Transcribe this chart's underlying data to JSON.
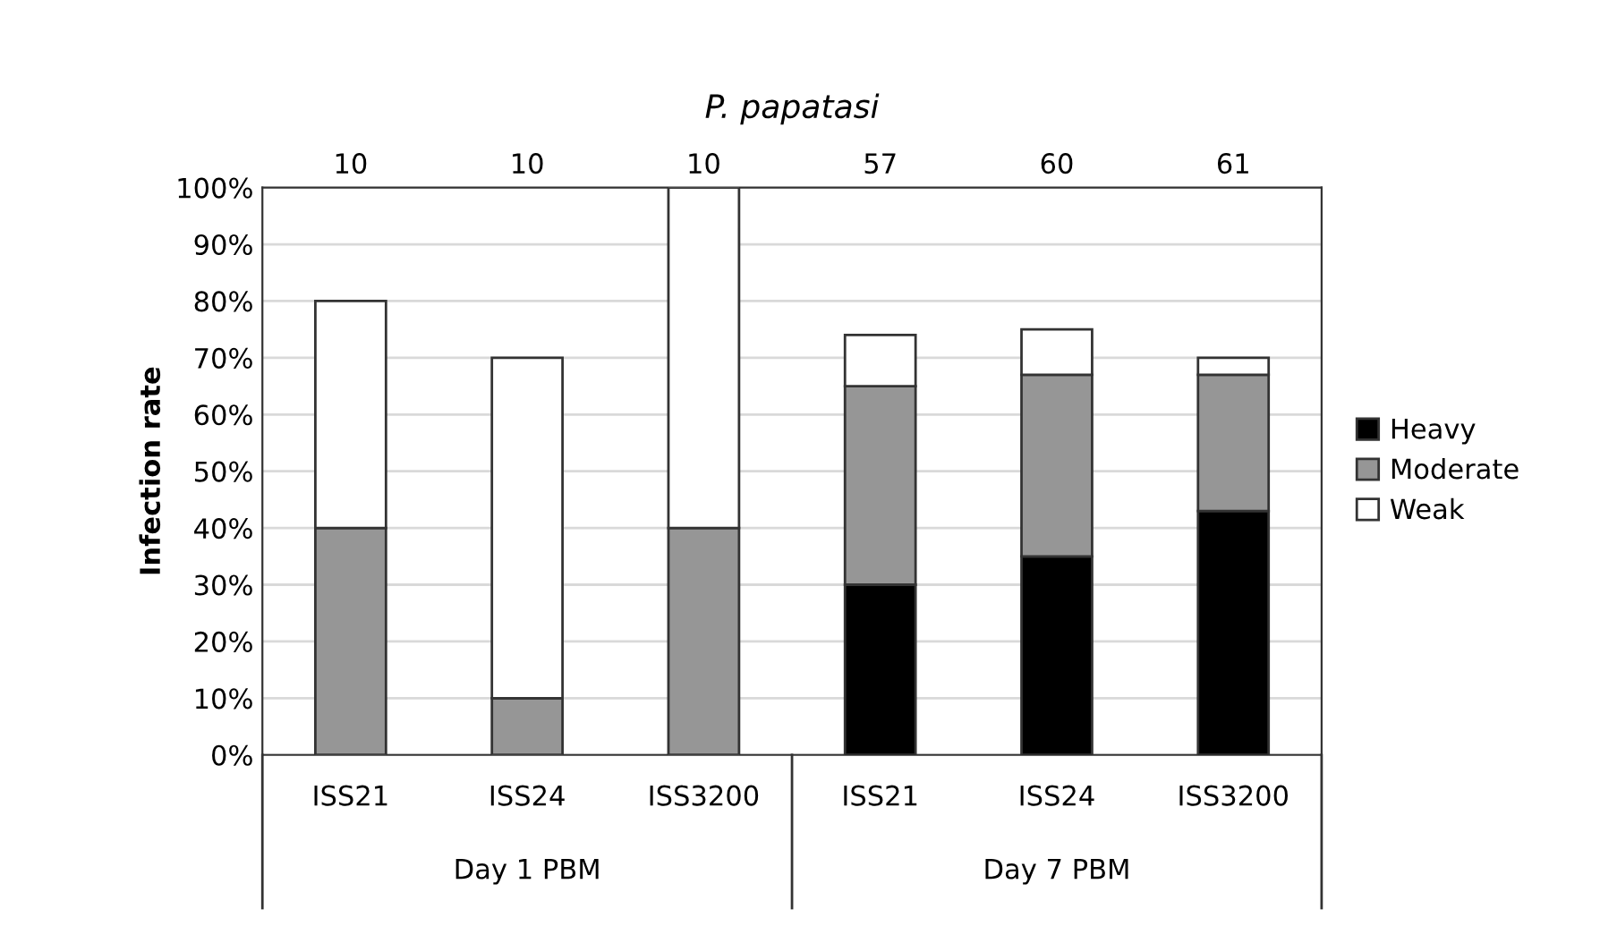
{
  "chart_data": {
    "type": "bar",
    "title": "P. papatasi",
    "ylabel": "Infection rate",
    "categories": [
      "ISS21",
      "ISS24",
      "ISS3200",
      "ISS21",
      "ISS24",
      "ISS3200"
    ],
    "stacked": true,
    "series": [
      {
        "name": "Heavy",
        "color": "#000000",
        "values": [
          0,
          0,
          0,
          30,
          35,
          43
        ]
      },
      {
        "name": "Moderate",
        "color": "#969696",
        "values": [
          40,
          10,
          40,
          35,
          32,
          24
        ]
      },
      {
        "name": "Weak",
        "color": "#ffffff",
        "values": [
          40,
          60,
          60,
          9,
          8,
          3
        ]
      }
    ],
    "ylim": [
      0,
      100
    ],
    "yticks": [
      {
        "value": 0,
        "label": "0%"
      },
      {
        "value": 10,
        "label": "10%"
      },
      {
        "value": 20,
        "label": "20%"
      },
      {
        "value": 30,
        "label": "30%"
      },
      {
        "value": 40,
        "label": "40%"
      },
      {
        "value": 50,
        "label": "50%"
      },
      {
        "value": 60,
        "label": "60%"
      },
      {
        "value": 70,
        "label": "70%"
      },
      {
        "value": 80,
        "label": "80%"
      },
      {
        "value": 90,
        "label": "90%"
      },
      {
        "value": 100,
        "label": "100%"
      }
    ],
    "grid": "y",
    "legend": "right",
    "annotations": [
      "10",
      "10",
      "10",
      "57",
      "60",
      "61",
      "Day 1 PBM",
      "Day 7 PBM"
    ]
  }
}
